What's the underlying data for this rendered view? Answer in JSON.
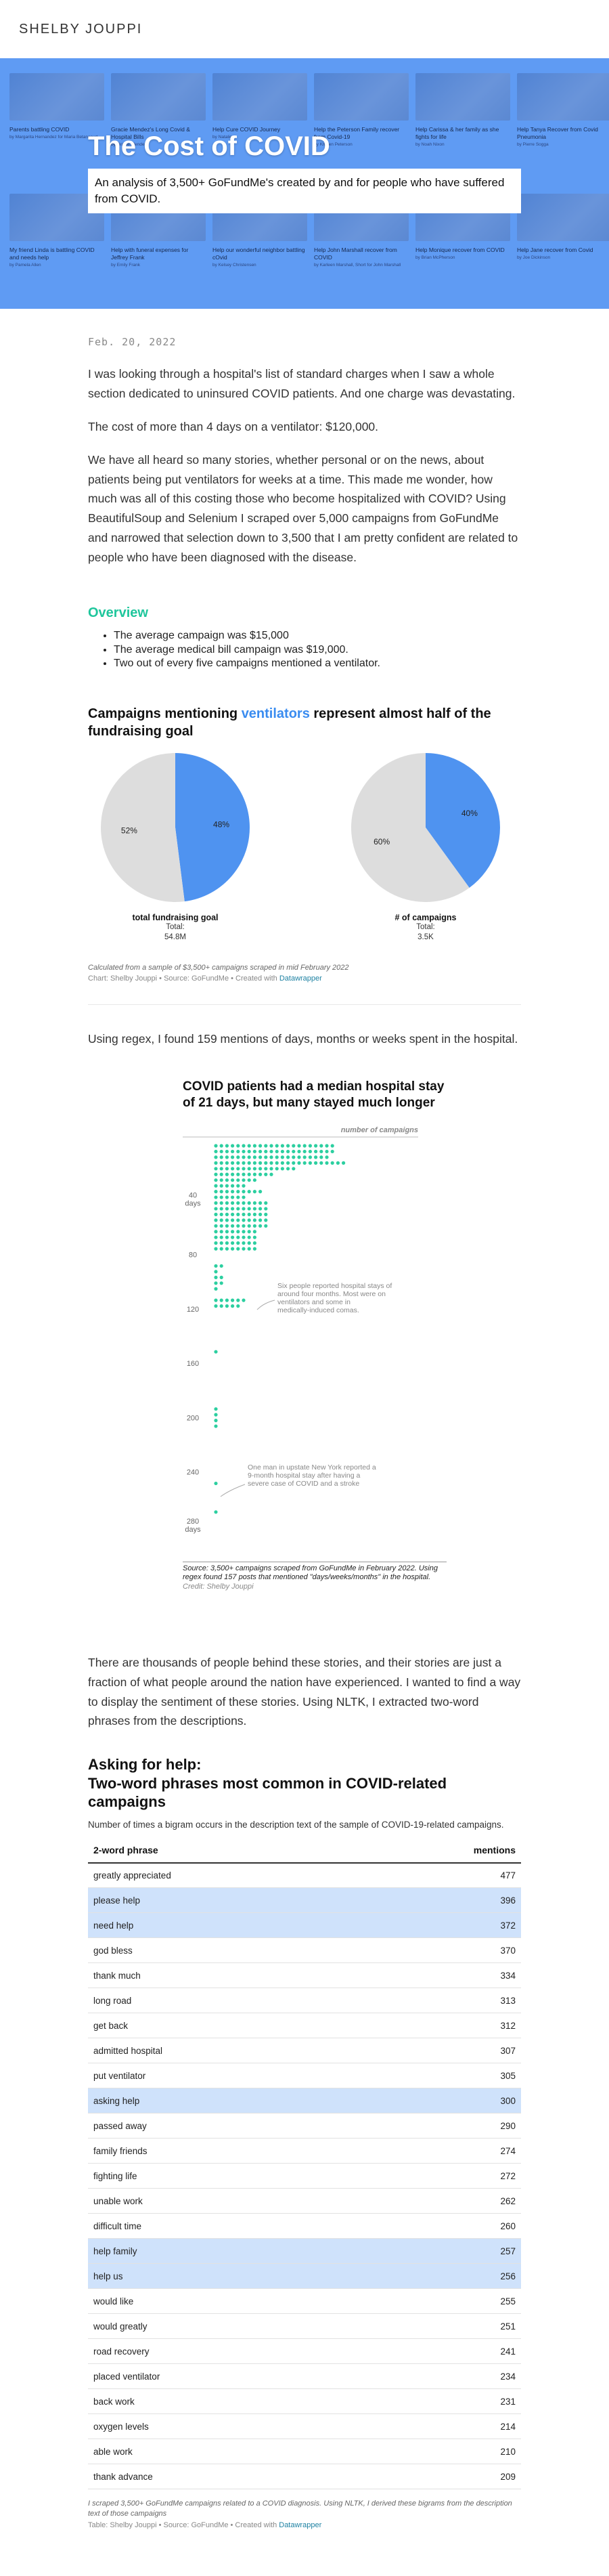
{
  "site": {
    "title": "SHELBY JOUPPI"
  },
  "hero": {
    "title": "The Cost of COVID",
    "deck": "An analysis of 3,500+ GoFundMe's created by and for people who have suffered from COVID.",
    "campaign_tiles_row1": [
      {
        "title": "Parents battling COVID",
        "sub": "by Margarita Hernandez for Maria Betancourt"
      },
      {
        "title": "Gracie Mendez's Long Covid & Hospital Bills",
        "sub": "by Gracie Mendez"
      },
      {
        "title": "Help Cure COVID Journey",
        "sub": "by Natalie"
      },
      {
        "title": "Help the Peterson Family recover from Covid-19",
        "sub": "by Kristen Peterson"
      },
      {
        "title": "Help Carissa & her family as she fights for life",
        "sub": "by Noah Nixon"
      },
      {
        "title": "Help Tanya Recover from Covid Pneumonia",
        "sub": "by Pierre Sogga"
      }
    ],
    "campaign_tiles_row2": [
      {
        "title": "My friend Linda is battling COVID and needs help",
        "sub": "by Pamela Allen"
      },
      {
        "title": "Help with funeral expenses for Jeffrey Frank",
        "sub": "by Emily Frank"
      },
      {
        "title": "Help our wonderful neighbor battling cOvid",
        "sub": "by Kelsey Christensen"
      },
      {
        "title": "Help John Marshall recover from COVID",
        "sub": "by Karleen Marshall, Short for John Marshall"
      },
      {
        "title": "Help Monique recover from COVID",
        "sub": "by Brian McPherson"
      },
      {
        "title": "Help Jane recover from Covid",
        "sub": "by Joe Dickinson"
      }
    ]
  },
  "article": {
    "date": "Feb. 20, 2022",
    "intro": [
      "I was looking through a hospital's list of standard charges when I saw a whole section dedicated to uninsured COVID patients. And one charge was devastating.",
      "The cost of more than 4 days on a ventilator: $120,000.",
      "We have all heard so many stories, whether personal or on the news, about patients being put ventilators for weeks at a time. This made me wonder, how much was all of this costing those who become hospitalized with COVID? Using BeautifulSoup and Selenium I scraped over 5,000 campaigns from GoFundMe and narrowed that selection down to 3,500 that I am pretty confident are related to people who have been diagnosed with the disease."
    ],
    "overview_heading": "Overview",
    "overview_items": [
      "The average campaign was $15,000",
      "The average medical bill campaign was $19,000.",
      "Two out of every five campaigns mentioned a ventilator."
    ],
    "regex_para": "Using regex, I found 159 mentions of days, months or weeks spent in the hospital.",
    "sentiment_para": "There are thousands of people behind these stories, and their stories are just a fraction of what people around the nation have experienced. I wanted to find a way to display the sentiment of these stories. Using NLTK, I extracted two-word phrases from the descriptions."
  },
  "pie_figure": {
    "title_pre": "Campaigns mentioning ",
    "title_highlight": "ventilators",
    "title_post": " represent almost half of the fundraising goal",
    "colors": {
      "highlight": "#4f93f0",
      "rest": "#dddddd"
    },
    "note": "Calculated from a sample of $3,500+ campaigns scraped in mid February 2022",
    "credit_text": "Chart: Shelby Jouppi • Source: GoFundMe • Created with ",
    "credit_link": "Datawrapper"
  },
  "chart_data": [
    {
      "type": "pie",
      "title": "total fundraising goal",
      "subtitle": "Total:",
      "total": "54.8M",
      "slices": [
        {
          "label": "48%",
          "value": 48,
          "color": "#4f93f0"
        },
        {
          "label": "52%",
          "value": 52,
          "color": "#dddddd"
        }
      ]
    },
    {
      "type": "pie",
      "title": "# of campaigns",
      "subtitle": "Total:",
      "total": "3.5K",
      "slices": [
        {
          "label": "40%",
          "value": 40,
          "color": "#4f93f0"
        },
        {
          "label": "60%",
          "value": 60,
          "color": "#dddddd"
        }
      ]
    },
    {
      "type": "scatter",
      "title": "COVID patients had a median hospital stay of 21 days, but many stayed much longer",
      "xlabel": "number of campaigns",
      "y_ticks": [
        "40 days",
        "80",
        "120",
        "160",
        "200",
        "240",
        "280 days"
      ],
      "dot_color": "#2ccfa0",
      "counts": [
        22,
        22,
        21,
        24,
        15,
        11,
        8,
        6,
        9,
        6,
        10,
        10,
        10,
        10,
        10,
        8,
        8,
        8,
        8,
        0,
        0,
        2,
        1,
        2,
        2,
        1,
        0,
        6,
        5,
        0,
        0,
        0,
        0,
        0,
        0,
        0,
        1,
        0,
        0,
        0,
        0,
        0,
        0,
        0,
        0,
        0,
        1,
        1,
        1,
        1,
        0,
        0,
        0,
        0,
        0,
        0,
        0,
        0,
        0,
        1,
        0,
        0,
        0,
        0,
        1
      ],
      "annotations": [
        "Six people reported hospital stays of around four months. Most were on ventilators and some in medically-induced comas.",
        "One man in upstate New York reported a 9-month hospital stay after having a severe case of COVID and a stroke"
      ],
      "source": "Source: 3,500+ campaigns scraped from GoFundMe in February 2022. Using regex found 157 posts that mentioned \"days/weeks/months\" in the hospital.",
      "credit": "Credit: Shelby Jouppi"
    }
  ],
  "phrases": {
    "title_line1": "Asking for help:",
    "title_line2": "Two-word phrases most common in COVID-related campaigns",
    "description": "Number of times a bigram occurs in the description text of the sample of COVID-19-related campaigns.",
    "col_phrase": "2-word phrase",
    "col_mentions": "mentions",
    "rows": [
      {
        "phrase": "greatly appreciated",
        "mentions": "477",
        "hl": false
      },
      {
        "phrase": "please help",
        "mentions": "396",
        "hl": true
      },
      {
        "phrase": "need help",
        "mentions": "372",
        "hl": true
      },
      {
        "phrase": "god bless",
        "mentions": "370",
        "hl": false
      },
      {
        "phrase": "thank much",
        "mentions": "334",
        "hl": false
      },
      {
        "phrase": "long road",
        "mentions": "313",
        "hl": false
      },
      {
        "phrase": "get back",
        "mentions": "312",
        "hl": false
      },
      {
        "phrase": "admitted hospital",
        "mentions": "307",
        "hl": false
      },
      {
        "phrase": "put ventilator",
        "mentions": "305",
        "hl": false
      },
      {
        "phrase": "asking help",
        "mentions": "300",
        "hl": true
      },
      {
        "phrase": "passed away",
        "mentions": "290",
        "hl": false
      },
      {
        "phrase": "family friends",
        "mentions": "274",
        "hl": false
      },
      {
        "phrase": "fighting life",
        "mentions": "272",
        "hl": false
      },
      {
        "phrase": "unable work",
        "mentions": "262",
        "hl": false
      },
      {
        "phrase": "difficult time",
        "mentions": "260",
        "hl": false
      },
      {
        "phrase": "help family",
        "mentions": "257",
        "hl": true
      },
      {
        "phrase": "help us",
        "mentions": "256",
        "hl": true
      },
      {
        "phrase": "would like",
        "mentions": "255",
        "hl": false
      },
      {
        "phrase": "would greatly",
        "mentions": "251",
        "hl": false
      },
      {
        "phrase": "road recovery",
        "mentions": "241",
        "hl": false
      },
      {
        "phrase": "placed ventilator",
        "mentions": "234",
        "hl": false
      },
      {
        "phrase": "back work",
        "mentions": "231",
        "hl": false
      },
      {
        "phrase": "oxygen levels",
        "mentions": "214",
        "hl": false
      },
      {
        "phrase": "able work",
        "mentions": "210",
        "hl": false
      },
      {
        "phrase": "thank advance",
        "mentions": "209",
        "hl": false
      }
    ],
    "note": "I scraped 3,500+ GoFundMe campaigns related to a COVID diagnosis. Using NLTK, I derived these bigrams from the description text of those campaigns",
    "credit_text": "Table: Shelby Jouppi • Source: GoFundMe • Created with ",
    "credit_link": "Datawrapper"
  }
}
